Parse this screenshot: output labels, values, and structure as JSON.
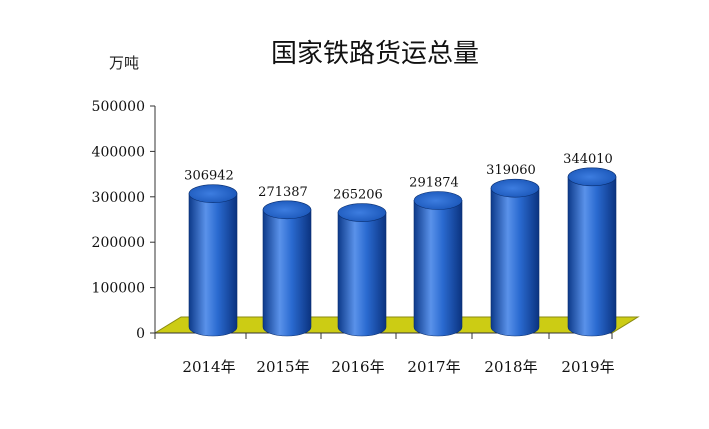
{
  "chart_data": {
    "type": "bar",
    "title": "国家铁路货运总量",
    "ylabel": "万吨",
    "xlabel": "",
    "categories": [
      "2014年",
      "2015年",
      "2016年",
      "2017年",
      "2018年",
      "2019年"
    ],
    "values": [
      306942,
      271387,
      265206,
      291874,
      319060,
      344010
    ],
    "data_labels": [
      "306942",
      "271387",
      "265206",
      "291874",
      "319060",
      "344010"
    ],
    "ylim": [
      0,
      500000
    ],
    "y_ticks": [
      "0",
      "100000",
      "200000",
      "300000",
      "400000",
      "500000"
    ],
    "grid": false,
    "legend": "none",
    "colors": {
      "bar": "#1f5fc4",
      "bar_dark": "#0d3a8a",
      "bar_light": "#5a92ea",
      "floor": "#cccc14",
      "floor_edge": "#8a8a10"
    }
  }
}
